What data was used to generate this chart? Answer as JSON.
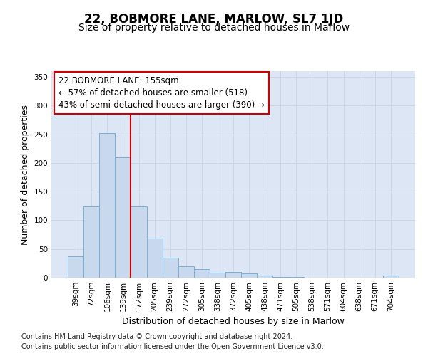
{
  "title": "22, BOBMORE LANE, MARLOW, SL7 1JD",
  "subtitle": "Size of property relative to detached houses in Marlow",
  "xlabel": "Distribution of detached houses by size in Marlow",
  "ylabel": "Number of detached properties",
  "categories": [
    "39sqm",
    "72sqm",
    "106sqm",
    "139sqm",
    "172sqm",
    "205sqm",
    "239sqm",
    "272sqm",
    "305sqm",
    "338sqm",
    "372sqm",
    "405sqm",
    "438sqm",
    "471sqm",
    "505sqm",
    "538sqm",
    "571sqm",
    "604sqm",
    "638sqm",
    "671sqm",
    "704sqm"
  ],
  "values": [
    37,
    124,
    252,
    210,
    124,
    68,
    35,
    20,
    15,
    9,
    10,
    8,
    4,
    1,
    1,
    0,
    0,
    0,
    0,
    0,
    4
  ],
  "bar_color": "#c8d9ee",
  "bar_edge_color": "#7aaed4",
  "vline_x": 3.5,
  "vline_color": "#cc0000",
  "annotation_line1": "22 BOBMORE LANE: 155sqm",
  "annotation_line2": "← 57% of detached houses are smaller (518)",
  "annotation_line3": "43% of semi-detached houses are larger (390) →",
  "annotation_box_facecolor": "#ffffff",
  "annotation_box_edgecolor": "#cc0000",
  "ylim": [
    0,
    360
  ],
  "yticks": [
    0,
    50,
    100,
    150,
    200,
    250,
    300,
    350
  ],
  "grid_color": "#ccd6e8",
  "bg_color": "#dce6f5",
  "footer_line1": "Contains HM Land Registry data © Crown copyright and database right 2024.",
  "footer_line2": "Contains public sector information licensed under the Open Government Licence v3.0.",
  "title_fontsize": 12,
  "subtitle_fontsize": 10,
  "axis_label_fontsize": 9,
  "tick_fontsize": 7.5,
  "annotation_fontsize": 8.5,
  "footer_fontsize": 7
}
